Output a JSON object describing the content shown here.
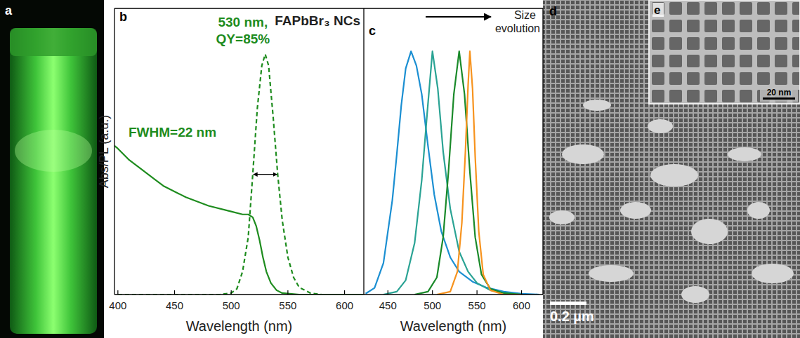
{
  "figure_title": "FAPbBr₃ NCs",
  "images": [
    {
      "label": "a"
    },
    {
      "label": "d",
      "scale_bar": "0.2 µm"
    },
    {
      "label": "e",
      "scale_bar": "20 nm"
    }
  ],
  "chart_data": [
    {
      "type": "line",
      "label": "b",
      "x_label": "Wavelength (nm)",
      "y_label": "Abs/PL (a.u.)",
      "xlim": [
        397,
        617
      ],
      "xticks": [
        400,
        450,
        500,
        550,
        600
      ],
      "ylim": [
        0,
        1
      ],
      "yticks": [],
      "tick_labels": "x",
      "annotations": [
        "530 nm,",
        "QY=85%",
        "FWHM=22 nm"
      ],
      "series": [
        {
          "color": "#1e8c1e",
          "line_style": "solid",
          "x": [
            397,
            400,
            410,
            420,
            440,
            460,
            480,
            500,
            510,
            515,
            519,
            522,
            525,
            528,
            531,
            535,
            540,
            545,
            560,
            600,
            617
          ],
          "values": [
            0.52,
            0.51,
            0.47,
            0.44,
            0.38,
            0.34,
            0.31,
            0.29,
            0.28,
            0.28,
            0.27,
            0.24,
            0.19,
            0.13,
            0.08,
            0.04,
            0.015,
            0.005,
            0,
            0,
            0
          ]
        },
        {
          "color": "#1e8c1e",
          "line_style": "dashed",
          "x": [
            400,
            450,
            490,
            500,
            505,
            510,
            515,
            519,
            523,
            527,
            530,
            533,
            537,
            541,
            545,
            550,
            555,
            560,
            570,
            580,
            600,
            615
          ],
          "values": [
            0,
            0,
            0,
            0.005,
            0.02,
            0.08,
            0.2,
            0.42,
            0.65,
            0.8,
            0.84,
            0.8,
            0.62,
            0.42,
            0.26,
            0.13,
            0.06,
            0.025,
            0.005,
            0,
            0,
            0
          ]
        }
      ]
    },
    {
      "type": "line",
      "label": "c",
      "x_label": "Wavelength (nm)",
      "annotation": "Size evolution",
      "xlim": [
        423,
        624
      ],
      "xticks": [
        450,
        500,
        550,
        600
      ],
      "ylim": [
        0,
        1
      ],
      "yticks": [],
      "tick_labels": "x",
      "series": [
        {
          "color": "#1b8fd2",
          "line_style": "solid",
          "x": [
            425,
            435,
            445,
            455,
            460,
            465,
            470,
            476,
            482,
            488,
            495,
            502,
            510,
            520,
            530,
            545,
            560,
            580,
            600,
            620
          ],
          "values": [
            0.003,
            0.023,
            0.11,
            0.33,
            0.49,
            0.66,
            0.79,
            0.85,
            0.8,
            0.7,
            0.52,
            0.35,
            0.22,
            0.13,
            0.08,
            0.045,
            0.025,
            0.01,
            0.003,
            0
          ]
        },
        {
          "color": "#2aa394",
          "line_style": "solid",
          "x": [
            445,
            460,
            470,
            480,
            488,
            494,
            500,
            506,
            512,
            520,
            530,
            540,
            550,
            565,
            580,
            600
          ],
          "values": [
            0,
            0.01,
            0.05,
            0.18,
            0.4,
            0.63,
            0.85,
            0.72,
            0.5,
            0.3,
            0.15,
            0.08,
            0.04,
            0.015,
            0.005,
            0
          ]
        },
        {
          "color": "#1a8a2a",
          "line_style": "solid",
          "x": [
            480,
            495,
            505,
            512,
            518,
            524,
            530,
            536,
            542,
            548,
            555,
            565,
            580,
            600
          ],
          "values": [
            0,
            0.01,
            0.06,
            0.2,
            0.43,
            0.7,
            0.85,
            0.7,
            0.43,
            0.2,
            0.07,
            0.02,
            0.005,
            0
          ]
        },
        {
          "color": "#f7931e",
          "line_style": "solid",
          "x": [
            505,
            520,
            528,
            533,
            537,
            540,
            542,
            545,
            548,
            552,
            557,
            565,
            580,
            600
          ],
          "values": [
            0,
            0.01,
            0.08,
            0.25,
            0.5,
            0.73,
            0.85,
            0.72,
            0.48,
            0.22,
            0.07,
            0.015,
            0,
            0
          ]
        }
      ]
    }
  ]
}
